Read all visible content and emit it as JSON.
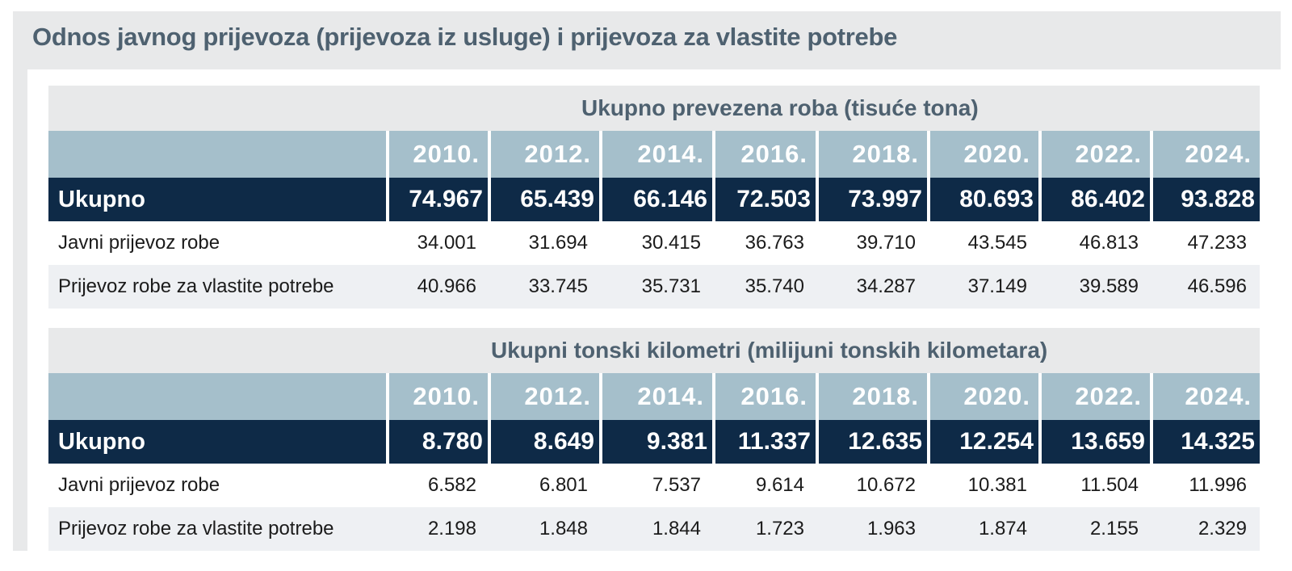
{
  "title": "Odnos javnog prijevoza (prijevoza iz usluge) i prijevoza za vlastite potrebe",
  "years": [
    "2010.",
    "2012.",
    "2014.",
    "2016.",
    "2018.",
    "2020.",
    "2022.",
    "2024."
  ],
  "tables": [
    {
      "heading": "Ukupno prevezena roba (tisuće tona)",
      "rows": [
        {
          "label": "Ukupno",
          "values": [
            "74.967",
            "65.439",
            "66.146",
            "72.503",
            "73.997",
            "80.693",
            "86.402",
            "93.828"
          ]
        },
        {
          "label": "Javni prijevoz robe",
          "values": [
            "34.001",
            "31.694",
            "30.415",
            "36.763",
            "39.710",
            "43.545",
            "46.813",
            "47.233"
          ]
        },
        {
          "label": "Prijevoz robe za vlastite potrebe",
          "values": [
            "40.966",
            "33.745",
            "35.731",
            "35.740",
            "34.287",
            "37.149",
            "39.589",
            "46.596"
          ]
        }
      ]
    },
    {
      "heading": "Ukupni tonski kilometri (milijuni tonskih kilometara)",
      "rows": [
        {
          "label": "Ukupno",
          "values": [
            "8.780",
            "8.649",
            "9.381",
            "11.337",
            "12.635",
            "12.254",
            "13.659",
            "14.325"
          ]
        },
        {
          "label": "Javni prijevoz robe",
          "values": [
            "6.582",
            "6.801",
            "7.537",
            "9.614",
            "10.672",
            "10.381",
            "11.504",
            "11.996"
          ]
        },
        {
          "label": "Prijevoz robe za vlastite potrebe",
          "values": [
            "2.198",
            "1.848",
            "1.844",
            "1.723",
            "1.963",
            "1.874",
            "2.155",
            "2.329"
          ]
        }
      ]
    }
  ]
}
